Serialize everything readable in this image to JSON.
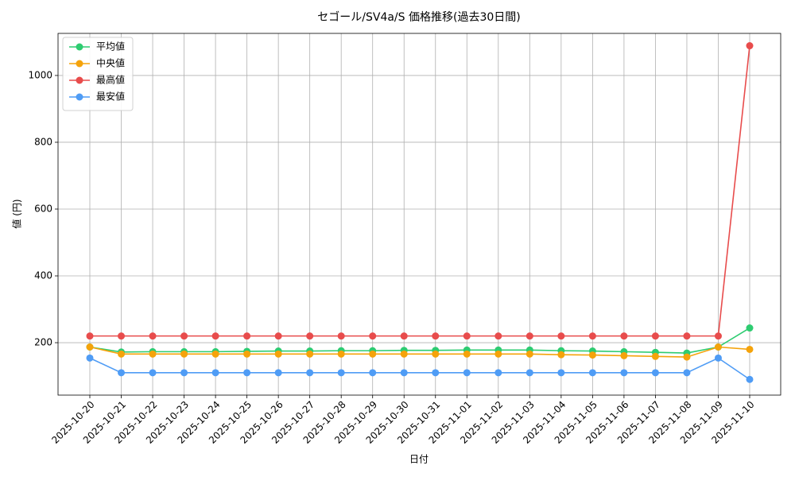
{
  "chart_data": {
    "type": "line",
    "title": "セゴール/SV4a/S 価格推移(過去30日間)",
    "x_label": "日付",
    "y_label": "値 (円)",
    "categories": [
      "2025-10-20",
      "2025-10-21",
      "2025-10-22",
      "2025-10-23",
      "2025-10-24",
      "2025-10-25",
      "2025-10-26",
      "2025-10-27",
      "2025-10-28",
      "2025-10-29",
      "2025-10-30",
      "2025-10-31",
      "2025-11-01",
      "2025-11-02",
      "2025-11-03",
      "2025-11-04",
      "2025-11-05",
      "2025-11-06",
      "2025-11-07",
      "2025-11-08",
      "2025-11-09",
      "2025-11-10"
    ],
    "series": [
      {
        "name": "平均値",
        "color": "#2ecc71",
        "values": [
          187,
          172,
          173,
          173,
          173,
          174,
          175,
          175,
          176,
          176,
          177,
          177,
          178,
          178,
          178,
          176,
          175,
          173,
          171,
          169,
          187,
          244
        ]
      },
      {
        "name": "中央値",
        "color": "#f5a30b",
        "values": [
          187,
          166,
          166,
          166,
          166,
          166,
          166,
          166,
          166,
          166,
          166,
          166,
          166,
          166,
          166,
          164,
          163,
          161,
          159,
          157,
          187,
          180
        ]
      },
      {
        "name": "最高値",
        "color": "#e84c4c",
        "values": [
          220,
          220,
          220,
          220,
          220,
          220,
          220,
          220,
          220,
          220,
          220,
          220,
          220,
          220,
          220,
          220,
          220,
          220,
          220,
          220,
          220,
          1089
        ]
      },
      {
        "name": "最安値",
        "color": "#4f9cf5",
        "values": [
          154,
          110,
          110,
          110,
          110,
          110,
          110,
          110,
          110,
          110,
          110,
          110,
          110,
          110,
          110,
          110,
          110,
          110,
          110,
          110,
          154,
          90
        ]
      }
    ],
    "ylim": [
      43,
      1126
    ],
    "yticks": [
      200,
      400,
      600,
      800,
      1000
    ],
    "grid": true,
    "legend": "upper left"
  }
}
